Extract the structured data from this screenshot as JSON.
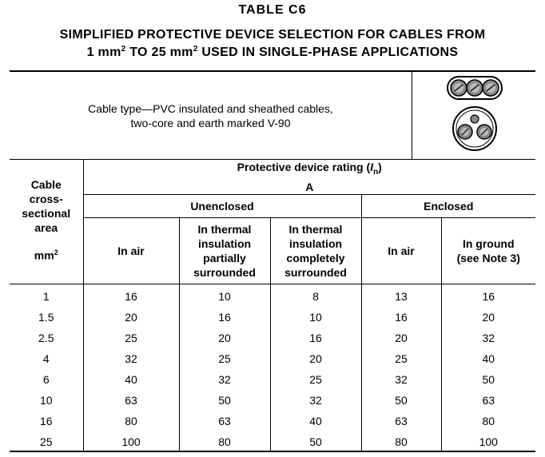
{
  "table_label": "TABLE   C6",
  "title": {
    "line1": "SIMPLIFIED PROTECTIVE DEVICE SELECTION FOR CABLES FROM",
    "line2_part1": "1 mm",
    "line2_sup1": "2",
    "line2_part2": " TO 25 mm",
    "line2_sup2": "2",
    "line2_part3": " USED IN SINGLE-PHASE APPLICATIONS"
  },
  "cable_type": {
    "line1": "Cable type—PVC insulated and sheathed cables,",
    "line2": "two-core and earth marked V-90",
    "icons": [
      "flat-cable-cross-section-icon",
      "circular-cable-cross-section-icon"
    ]
  },
  "headers": {
    "col0_lines": [
      "Cable",
      "cross-",
      "sectional",
      "area"
    ],
    "col0_unit": "mm",
    "col0_unit_sup": "2",
    "rating_line1_pre": "Protective device rating (",
    "rating_symbol": "I",
    "rating_sub": "n",
    "rating_line1_post": ")",
    "rating_line2": "A",
    "unenclosed": "Unenclosed",
    "enclosed": "Enclosed",
    "sub_columns": [
      [
        "In air"
      ],
      [
        "In thermal",
        "insulation",
        "partially",
        "surrounded"
      ],
      [
        "In thermal",
        "insulation",
        "completely",
        "surrounded"
      ],
      [
        "In air"
      ],
      [
        "In ground",
        "(see Note 3)"
      ]
    ]
  },
  "rows": [
    [
      "1",
      "16",
      "10",
      "8",
      "13",
      "16"
    ],
    [
      "1.5",
      "20",
      "16",
      "10",
      "16",
      "20"
    ],
    [
      "2.5",
      "25",
      "20",
      "16",
      "20",
      "32"
    ],
    [
      "4",
      "32",
      "25",
      "20",
      "25",
      "40"
    ],
    [
      "6",
      "40",
      "32",
      "25",
      "32",
      "50"
    ],
    [
      "10",
      "63",
      "50",
      "32",
      "50",
      "63"
    ],
    [
      "16",
      "80",
      "63",
      "40",
      "63",
      "80"
    ],
    [
      "25",
      "100",
      "80",
      "50",
      "80",
      "100"
    ]
  ]
}
